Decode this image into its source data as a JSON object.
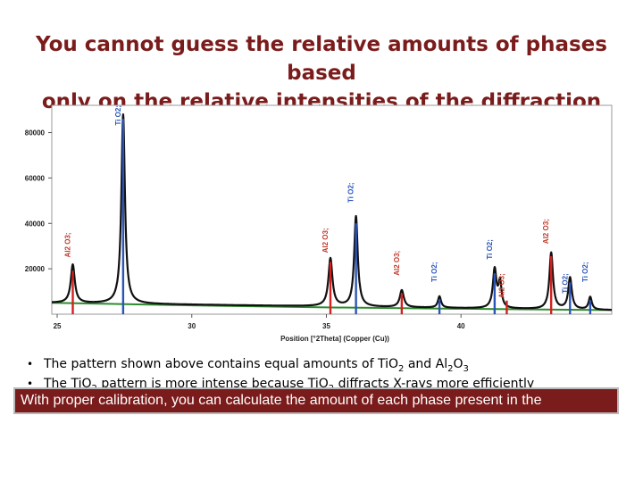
{
  "title": {
    "line1": "You cannot guess the relative amounts of phases based",
    "line2": "only on the relative intensities of the diffraction peaks"
  },
  "chart_data": {
    "type": "line",
    "xlabel": "Position [°2Theta] (Copper (Cu))",
    "ylabel": "",
    "xlim": [
      24.8,
      45.6
    ],
    "ylim": [
      0,
      92000
    ],
    "x_ticks": [
      25,
      30,
      35,
      40
    ],
    "x_tick_labels": [
      "25",
      "30",
      "35",
      "40"
    ],
    "y_ticks": [
      20000,
      40000,
      60000,
      80000
    ],
    "y_tick_labels": [
      "20000",
      "40000",
      "60000",
      "80000"
    ],
    "background": {
      "name": "background",
      "color": "#2e8b2e",
      "x": [
        24.8,
        30,
        35,
        40,
        45.6
      ],
      "y": [
        5000,
        3900,
        3000,
        2400,
        1800
      ]
    },
    "pattern": {
      "name": "observed",
      "color": "#111111",
      "base_y": [
        5000,
        1800
      ],
      "peaks": [
        {
          "x": 25.58,
          "y": 21800,
          "width": 0.09
        },
        {
          "x": 27.45,
          "y": 88000,
          "width": 0.08
        },
        {
          "x": 35.15,
          "y": 24500,
          "width": 0.09
        },
        {
          "x": 36.1,
          "y": 43000,
          "width": 0.08
        },
        {
          "x": 37.8,
          "y": 10500,
          "width": 0.09
        },
        {
          "x": 39.2,
          "y": 7800,
          "width": 0.07
        },
        {
          "x": 41.25,
          "y": 19500,
          "width": 0.08
        },
        {
          "x": 41.45,
          "y": 13500,
          "width": 0.07
        },
        {
          "x": 43.35,
          "y": 27000,
          "width": 0.08
        },
        {
          "x": 44.05,
          "y": 16000,
          "width": 0.08
        },
        {
          "x": 44.8,
          "y": 7500,
          "width": 0.07
        }
      ]
    },
    "phases": [
      {
        "name": "Al2 O3;",
        "color": "#d42020",
        "label_color": "#c0392b"
      },
      {
        "name": "Ti O2;",
        "color": "#2a55b8",
        "label_color": "#2a55b8"
      }
    ],
    "phase_markers": [
      {
        "phase": "Al2 O3;",
        "x": 25.58,
        "height": 19000,
        "label": "Al2 O3;",
        "label_y": 36000
      },
      {
        "phase": "Ti O2;",
        "x": 27.45,
        "height": 86000,
        "label": "Ti O2;",
        "label_y": 92000
      },
      {
        "phase": "Al2 O3;",
        "x": 35.15,
        "height": 23000,
        "label": "Al2 O3;",
        "label_y": 38000
      },
      {
        "phase": "Ti O2;",
        "x": 36.1,
        "height": 40000,
        "label": "Ti O2;",
        "label_y": 58000
      },
      {
        "phase": "Al2 O3;",
        "x": 37.8,
        "height": 9000,
        "label": "Al2 O3;",
        "label_y": 28000
      },
      {
        "phase": "Ti O2;",
        "x": 39.2,
        "height": 6500,
        "label": "Ti O2;",
        "label_y": 23000
      },
      {
        "phase": "Ti O2;",
        "x": 41.25,
        "height": 18000,
        "label": "Ti O2;",
        "label_y": 33000
      },
      {
        "phase": "Al2 O3;",
        "x": 41.7,
        "height": 6000,
        "label": "Al2 O3;",
        "label_y": 18000
      },
      {
        "phase": "Al2 O3;",
        "x": 43.35,
        "height": 25500,
        "label": "Al2 O3;",
        "label_y": 42000
      },
      {
        "phase": "Ti O2;",
        "x": 44.05,
        "height": 14000,
        "label": "Ti O2;",
        "label_y": 18000
      },
      {
        "phase": "Ti O2;",
        "x": 44.8,
        "height": 6000,
        "label": "Ti O2;",
        "label_y": 23000
      }
    ],
    "grid": false,
    "legend": "none"
  },
  "bullets": [
    {
      "prefix": "The pattern shown above contains equal amounts of Ti",
      "f1_base": "O",
      "f1_sub": "2",
      "mid": " and Al",
      "f2_sub1": "2",
      "f2_base": "O",
      "f2_sub2": "3",
      "suffix": ""
    },
    {
      "prefix": "The Ti",
      "f1_base": "O",
      "f1_sub": "2",
      "mid": " pattern is more intense because Ti",
      "f2_base": "O",
      "f2_sub": "2",
      "suffix": " diffracts X-rays more efficiently"
    }
  ],
  "callout": {
    "text": "With proper calibration, you can calculate the amount of each phase present in the"
  },
  "colors": {
    "title": "#7b1c1c",
    "callout_bg": "#7b1c1c",
    "callout_text": "#ffffff",
    "al2o3_marker": "#d42020",
    "tio2_marker": "#2a55b8",
    "background_line": "#2e8b2e"
  }
}
